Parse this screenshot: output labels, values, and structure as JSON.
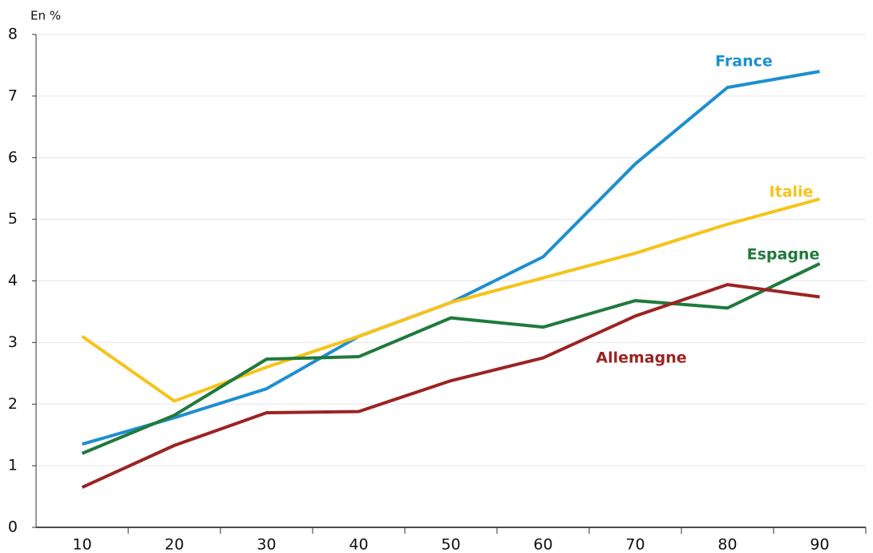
{
  "chart_data": {
    "type": "line",
    "y_label": "En %",
    "categories": [
      "10",
      "20",
      "30",
      "40",
      "50",
      "60",
      "70",
      "80",
      "90"
    ],
    "series": [
      {
        "name": "France",
        "color": "#1e8fd0",
        "values": [
          1.35,
          1.78,
          2.25,
          3.1,
          3.65,
          4.39,
          5.9,
          7.14,
          7.4
        ]
      },
      {
        "name": "Italie",
        "color": "#f7c31a",
        "values": [
          3.1,
          2.05,
          2.6,
          3.1,
          3.65,
          4.05,
          4.45,
          4.92,
          5.33
        ]
      },
      {
        "name": "Espagne",
        "color": "#1f7a3c",
        "values": [
          1.2,
          1.82,
          2.73,
          2.77,
          3.4,
          3.25,
          3.68,
          3.56,
          4.28
        ]
      },
      {
        "name": "Allemagne",
        "color": "#9c2323",
        "values": [
          0.65,
          1.33,
          1.86,
          1.88,
          2.38,
          2.75,
          3.43,
          3.94,
          3.74
        ]
      }
    ],
    "ylim": [
      0,
      8
    ],
    "yticks": [
      0,
      1,
      2,
      3,
      4,
      5,
      6,
      7,
      8
    ],
    "grid": true
  }
}
